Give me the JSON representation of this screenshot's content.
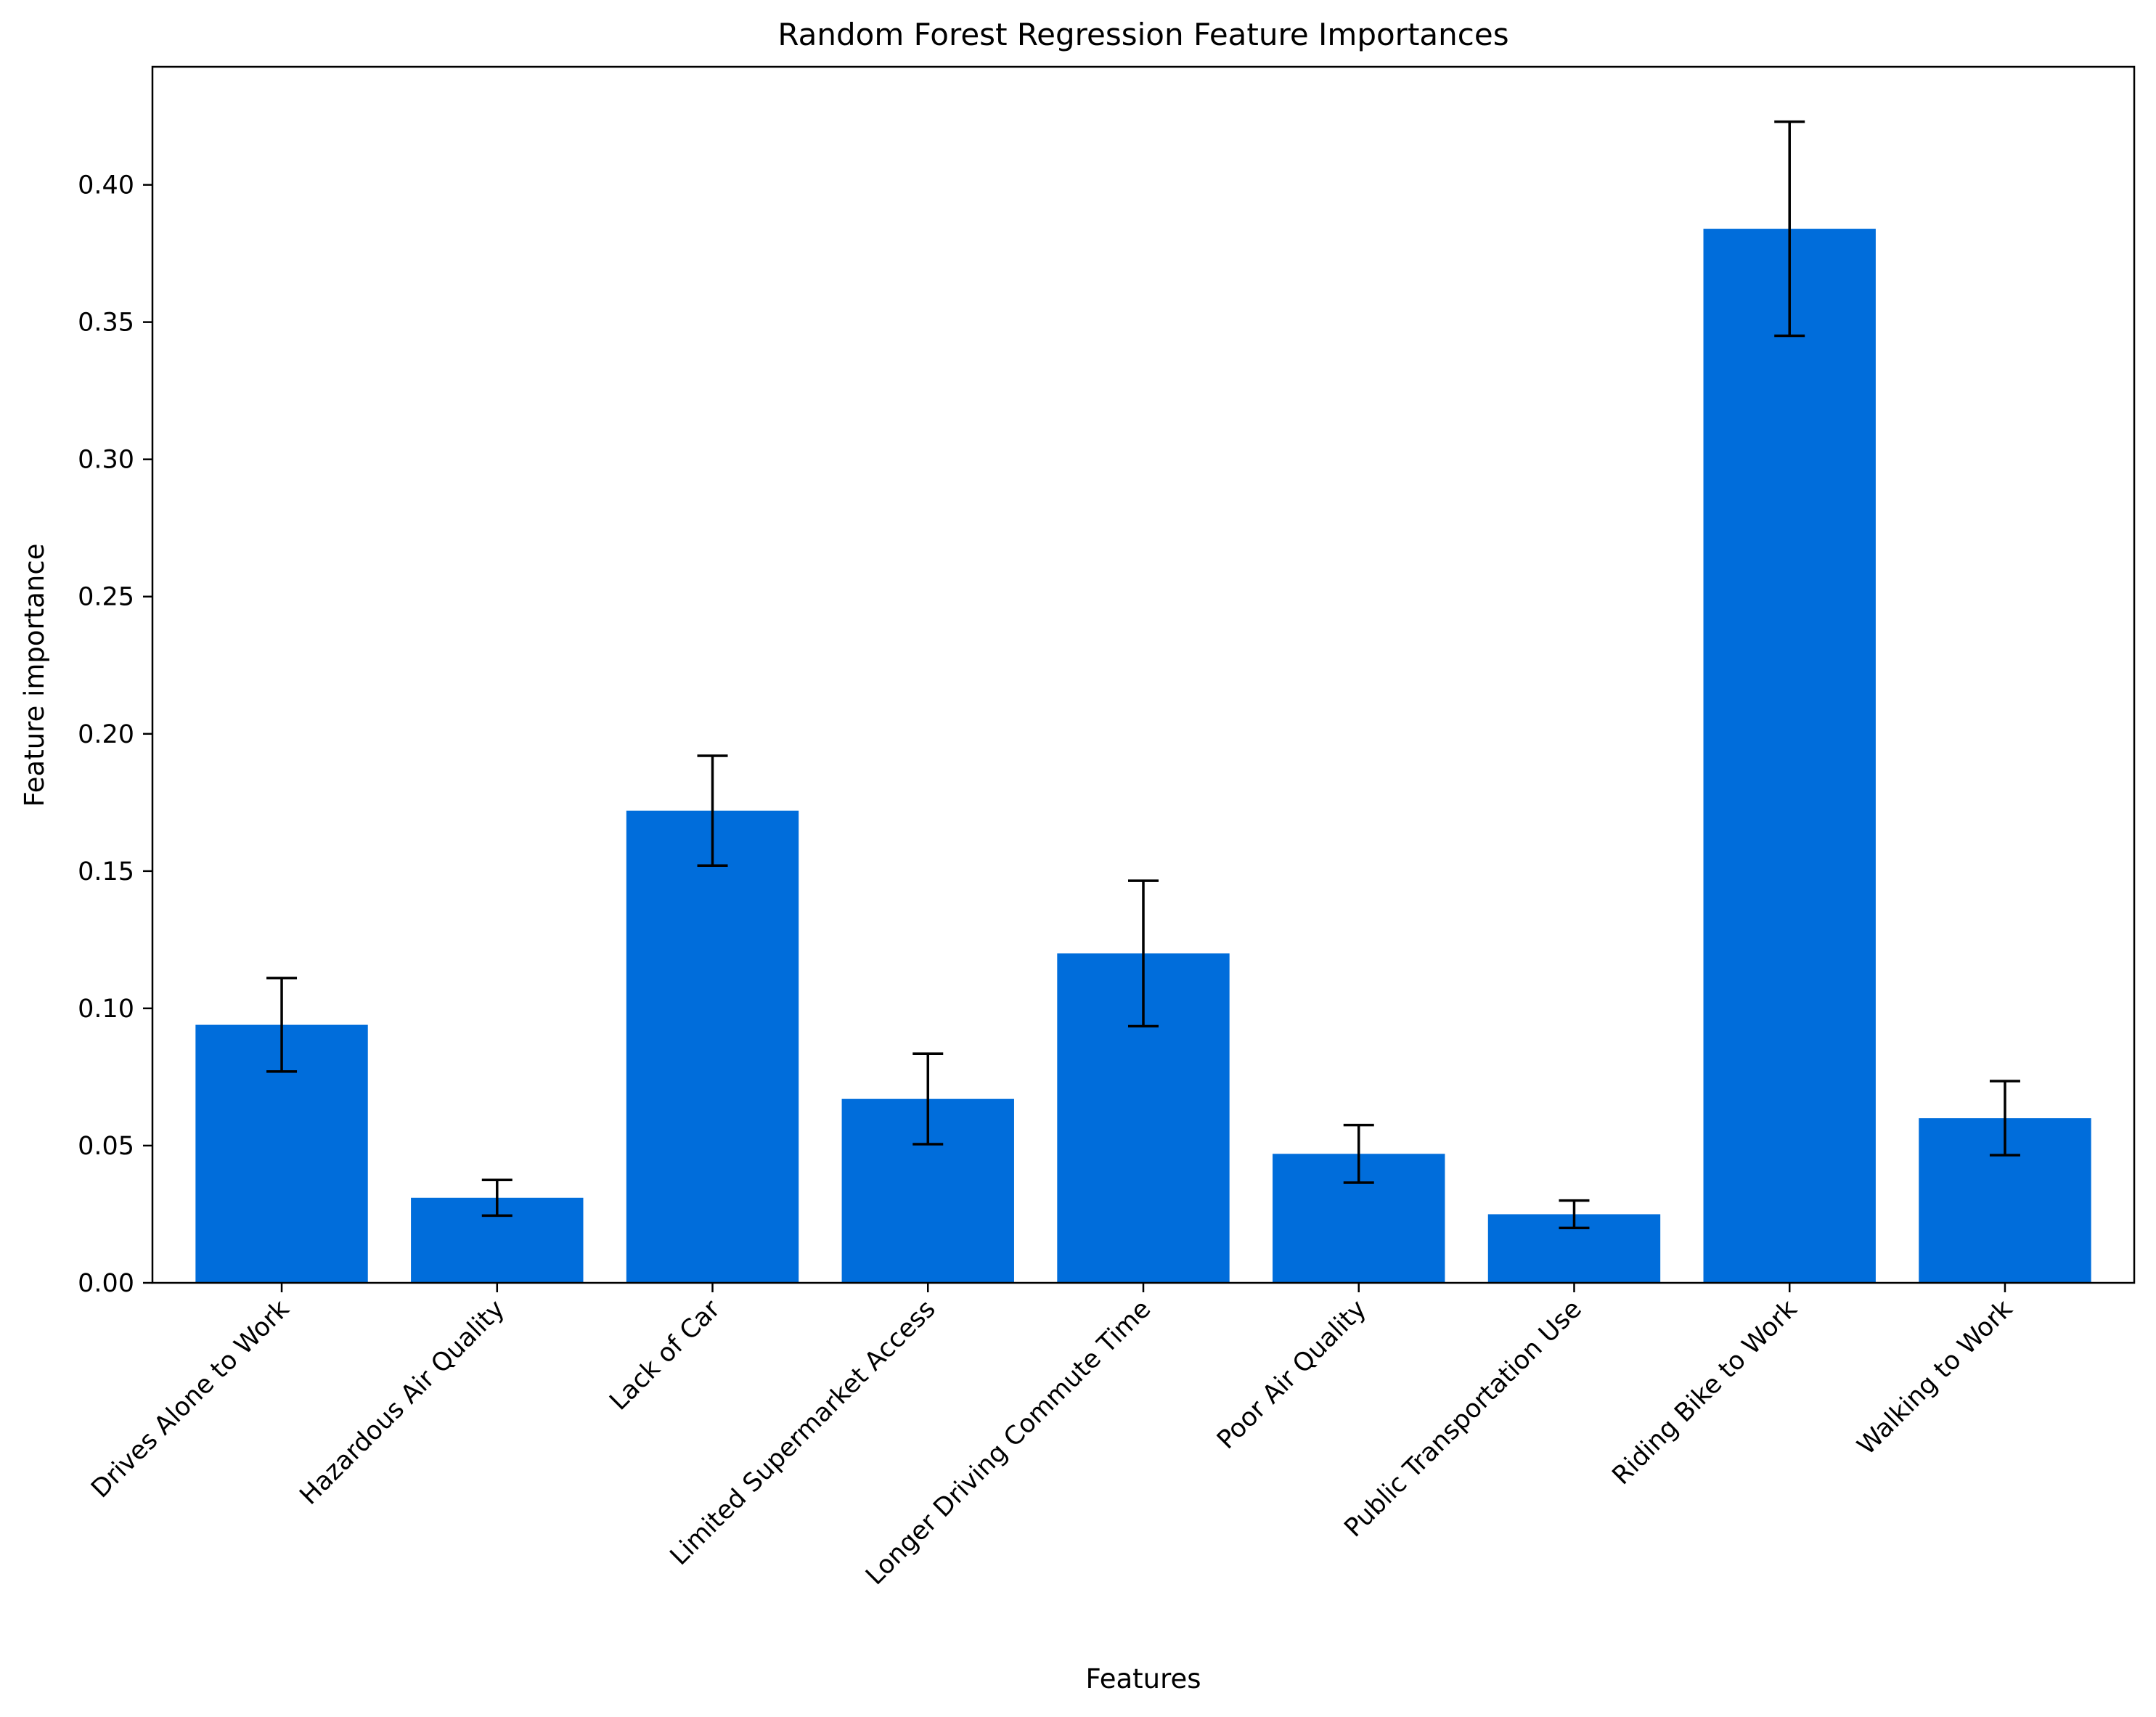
{
  "chart_data": {
    "type": "bar",
    "title": "Random Forest Regression Feature Importances",
    "xlabel": "Features",
    "ylabel": "Feature importance",
    "categories": [
      "Drives Alone to Work",
      "Hazardous Air Quality",
      "Lack of Car",
      "Limited Supermarket Access",
      "Longer Driving Commute Time",
      "Poor Air Quality",
      "Public Transportation Use",
      "Riding Bike to Work",
      "Walking to Work"
    ],
    "values": [
      0.094,
      0.031,
      0.172,
      0.067,
      0.12,
      0.047,
      0.025,
      0.384,
      0.06
    ],
    "errors": [
      0.017,
      0.0065,
      0.02,
      0.0165,
      0.0265,
      0.0105,
      0.005,
      0.039,
      0.0135
    ],
    "ylim": [
      0,
      0.443
    ],
    "yticks": [
      0.0,
      0.05,
      0.1,
      0.15,
      0.2,
      0.25,
      0.3,
      0.35,
      0.4
    ],
    "ytick_labels": [
      "0.00",
      "0.05",
      "0.10",
      "0.15",
      "0.20",
      "0.25",
      "0.30",
      "0.35",
      "0.40"
    ],
    "bar_color": "#006ddb",
    "error_color": "#000000",
    "grid": false,
    "legend": "none"
  }
}
